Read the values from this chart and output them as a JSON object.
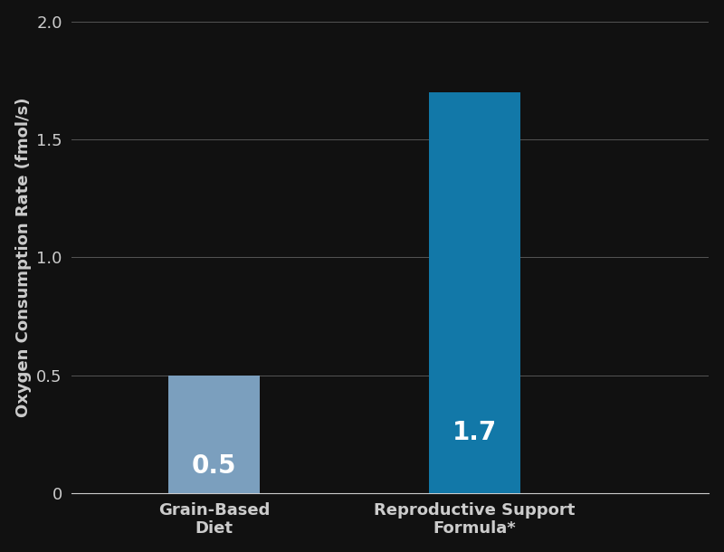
{
  "categories": [
    "Grain-Based\nDiet",
    "Reproductive Support\nFormula*"
  ],
  "values": [
    0.5,
    1.7
  ],
  "bar_colors": [
    "#7b9fbe",
    "#1278a8"
  ],
  "value_labels": [
    "0.5",
    "1.7"
  ],
  "ylabel": "Oxygen Consumption Rate (fmol/s)",
  "ylim": [
    0,
    2.0
  ],
  "yticks": [
    0,
    0.5,
    1.0,
    1.5,
    2.0
  ],
  "ytick_labels": [
    "0",
    "0.5",
    "1.0",
    "1.5",
    "2.0"
  ],
  "background_color": "#111111",
  "text_color": "#cccccc",
  "grid_color": "#555555",
  "label_fontsize": 13,
  "value_fontsize": 20,
  "tick_fontsize": 13,
  "ylabel_fontsize": 13,
  "bar_width": 0.35
}
